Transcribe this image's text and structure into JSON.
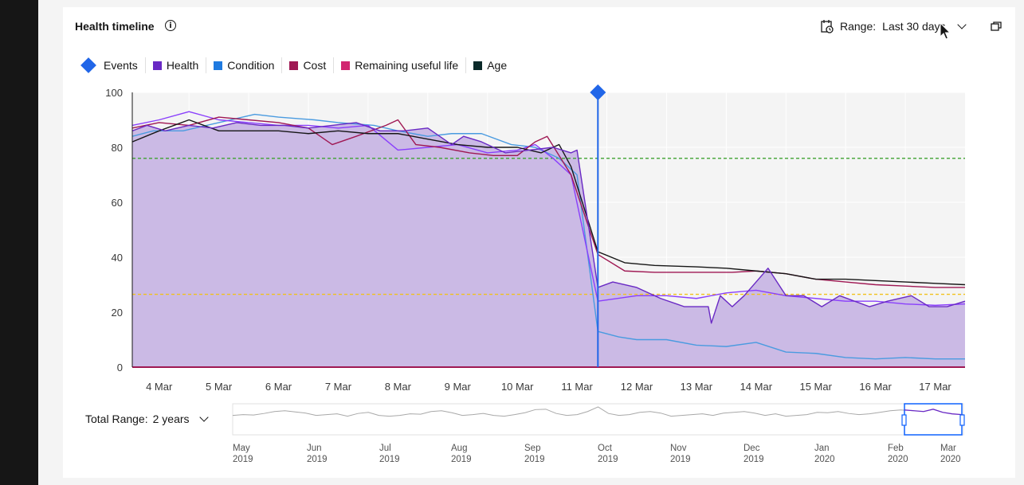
{
  "header": {
    "title": "Health timeline",
    "info_icon": "info-icon",
    "range_label": "Range:",
    "range_value": "Last 30 days",
    "calendar_icon": "calendar-icon",
    "popout_icon": "popout-icon"
  },
  "legend": [
    {
      "name": "Events",
      "shape": "diamond",
      "color": "#2166e8"
    },
    {
      "name": "Health",
      "shape": "square",
      "color": "#6929c4"
    },
    {
      "name": "Condition",
      "shape": "square",
      "color": "#1f7ae0"
    },
    {
      "name": "Cost",
      "shape": "square",
      "color": "#9f1853"
    },
    {
      "name": "Remaining useful life",
      "shape": "square",
      "color": "#d12771"
    },
    {
      "name": "Age",
      "shape": "square",
      "color": "#0b2a2a"
    }
  ],
  "footer": {
    "total_range_label": "Total Range:",
    "total_range_value": "2 years"
  },
  "chart_data": {
    "type": "area",
    "xlabel": "",
    "ylabel": "",
    "ylim": [
      0,
      100
    ],
    "xlim": [
      3.55,
      17.5
    ],
    "yticks": [
      0,
      20,
      40,
      60,
      80,
      100
    ],
    "xticks": [
      {
        "v": 4,
        "label": "4 Mar"
      },
      {
        "v": 5,
        "label": "5 Mar"
      },
      {
        "v": 6,
        "label": "6 Mar"
      },
      {
        "v": 7,
        "label": "7 Mar"
      },
      {
        "v": 8,
        "label": "8 Mar"
      },
      {
        "v": 9,
        "label": "9 Mar"
      },
      {
        "v": 10,
        "label": "10 Mar"
      },
      {
        "v": 11,
        "label": "11 Mar"
      },
      {
        "v": 12,
        "label": "12 Mar"
      },
      {
        "v": 13,
        "label": "13 Mar"
      },
      {
        "v": 14,
        "label": "14 Mar"
      },
      {
        "v": 15,
        "label": "15 Mar"
      },
      {
        "v": 16,
        "label": "16 Mar"
      },
      {
        "v": 17,
        "label": "17 Mar"
      }
    ],
    "grid": true,
    "thresholds": [
      {
        "y": 76,
        "color": "#3ea22f"
      },
      {
        "y": 26.5,
        "color": "#f1c21b"
      }
    ],
    "event": {
      "x": 11.35,
      "y": 100
    },
    "series": [
      {
        "name": "Health",
        "color": "#6929c4",
        "fill": "#c8b6e4",
        "points": [
          [
            3.55,
            86
          ],
          [
            3.8,
            88
          ],
          [
            4.1,
            86
          ],
          [
            4.5,
            88
          ],
          [
            4.9,
            87
          ],
          [
            5.3,
            89
          ],
          [
            5.7,
            88
          ],
          [
            6.1,
            88
          ],
          [
            6.5,
            87
          ],
          [
            6.9,
            88
          ],
          [
            7.3,
            89
          ],
          [
            7.7,
            86
          ],
          [
            8.1,
            86
          ],
          [
            8.5,
            87
          ],
          [
            8.9,
            81
          ],
          [
            9.1,
            84
          ],
          [
            9.4,
            82
          ],
          [
            9.8,
            78
          ],
          [
            10.2,
            79
          ],
          [
            10.6,
            80
          ],
          [
            10.9,
            78
          ],
          [
            11.0,
            79
          ],
          [
            11.35,
            29
          ],
          [
            11.6,
            31
          ],
          [
            12.0,
            29
          ],
          [
            12.4,
            25
          ],
          [
            12.8,
            22
          ],
          [
            13.2,
            22
          ],
          [
            13.25,
            16
          ],
          [
            13.4,
            26
          ],
          [
            13.6,
            22
          ],
          [
            13.8,
            26
          ],
          [
            14.2,
            36
          ],
          [
            14.5,
            26
          ],
          [
            14.8,
            26
          ],
          [
            15.1,
            22
          ],
          [
            15.4,
            26
          ],
          [
            15.9,
            22
          ],
          [
            16.2,
            24
          ],
          [
            16.6,
            26
          ],
          [
            16.9,
            22
          ],
          [
            17.2,
            22
          ],
          [
            17.5,
            24
          ]
        ]
      },
      {
        "name": "Condition",
        "color": "#4a9be0",
        "points": [
          [
            3.55,
            84
          ],
          [
            3.9,
            86
          ],
          [
            4.4,
            86
          ],
          [
            5.0,
            89
          ],
          [
            5.6,
            92
          ],
          [
            6.0,
            91
          ],
          [
            6.6,
            90
          ],
          [
            7.0,
            89
          ],
          [
            7.6,
            88
          ],
          [
            8.0,
            86
          ],
          [
            8.5,
            84
          ],
          [
            8.9,
            85
          ],
          [
            9.4,
            85
          ],
          [
            9.9,
            81
          ],
          [
            10.3,
            80
          ],
          [
            10.7,
            76
          ],
          [
            11.0,
            70
          ],
          [
            11.35,
            13
          ],
          [
            11.7,
            11
          ],
          [
            12.0,
            10
          ],
          [
            12.5,
            10
          ],
          [
            13.0,
            8
          ],
          [
            13.5,
            7.5
          ],
          [
            14.0,
            9
          ],
          [
            14.5,
            5.5
          ],
          [
            15.0,
            5
          ],
          [
            15.5,
            3.5
          ],
          [
            16.0,
            3
          ],
          [
            16.5,
            3.5
          ],
          [
            17.0,
            3
          ],
          [
            17.5,
            3
          ]
        ]
      },
      {
        "name": "Cost",
        "color": "#8a3ffc",
        "points": [
          [
            3.55,
            88
          ],
          [
            4.0,
            90
          ],
          [
            4.5,
            93
          ],
          [
            5.0,
            90
          ],
          [
            5.5,
            89
          ],
          [
            6.0,
            88
          ],
          [
            6.5,
            88
          ],
          [
            7.0,
            87
          ],
          [
            7.5,
            88
          ],
          [
            8.0,
            79
          ],
          [
            8.5,
            80
          ],
          [
            9.0,
            81
          ],
          [
            9.5,
            78
          ],
          [
            10.0,
            79
          ],
          [
            10.3,
            81
          ],
          [
            10.6,
            76
          ],
          [
            10.9,
            70
          ],
          [
            11.35,
            24
          ],
          [
            12.0,
            26
          ],
          [
            12.5,
            26
          ],
          [
            13.0,
            25
          ],
          [
            13.5,
            27
          ],
          [
            14.0,
            28
          ],
          [
            14.5,
            26
          ],
          [
            15.0,
            25
          ],
          [
            15.5,
            24
          ],
          [
            16.0,
            24
          ],
          [
            16.5,
            23
          ],
          [
            17.0,
            22.5
          ],
          [
            17.5,
            23
          ]
        ]
      },
      {
        "name": "Remaining useful life",
        "color": "#9f1853",
        "points": [
          [
            3.55,
            87
          ],
          [
            4.0,
            89
          ],
          [
            4.5,
            88
          ],
          [
            5.0,
            91
          ],
          [
            5.5,
            90
          ],
          [
            6.0,
            89
          ],
          [
            6.5,
            87
          ],
          [
            6.9,
            81
          ],
          [
            7.3,
            84
          ],
          [
            7.8,
            88
          ],
          [
            8.0,
            90
          ],
          [
            8.3,
            81
          ],
          [
            8.7,
            80
          ],
          [
            9.2,
            78
          ],
          [
            9.6,
            77
          ],
          [
            10.0,
            77
          ],
          [
            10.3,
            82
          ],
          [
            10.5,
            84
          ],
          [
            10.9,
            70
          ],
          [
            11.35,
            41
          ],
          [
            11.8,
            35
          ],
          [
            12.3,
            34.5
          ],
          [
            13.0,
            34.5
          ],
          [
            13.6,
            34.5
          ],
          [
            14.0,
            35
          ],
          [
            14.5,
            34
          ],
          [
            15.0,
            32
          ],
          [
            15.5,
            31
          ],
          [
            16.0,
            30
          ],
          [
            16.5,
            29.5
          ],
          [
            17.0,
            29
          ],
          [
            17.5,
            29
          ]
        ]
      },
      {
        "name": "Age",
        "color": "#161616",
        "points": [
          [
            3.55,
            82
          ],
          [
            4.0,
            86
          ],
          [
            4.5,
            90
          ],
          [
            5.0,
            86
          ],
          [
            5.5,
            86
          ],
          [
            6.0,
            86
          ],
          [
            6.5,
            85
          ],
          [
            7.0,
            86
          ],
          [
            7.5,
            85
          ],
          [
            8.0,
            85
          ],
          [
            8.5,
            83
          ],
          [
            9.0,
            81
          ],
          [
            9.5,
            80
          ],
          [
            10.0,
            80
          ],
          [
            10.4,
            78
          ],
          [
            10.7,
            81
          ],
          [
            10.9,
            73
          ],
          [
            11.35,
            42
          ],
          [
            11.8,
            38
          ],
          [
            12.3,
            37
          ],
          [
            13.0,
            36.5
          ],
          [
            13.5,
            36
          ],
          [
            14.0,
            35
          ],
          [
            14.5,
            34
          ],
          [
            15.0,
            32
          ],
          [
            15.5,
            32
          ],
          [
            16.0,
            31.5
          ],
          [
            16.5,
            31
          ],
          [
            17.0,
            30.5
          ],
          [
            17.5,
            30
          ]
        ]
      }
    ]
  },
  "overview": {
    "ticks": [
      {
        "line1": "May",
        "line2": "2019"
      },
      {
        "line1": "Jun",
        "line2": "2019"
      },
      {
        "line1": "Jul",
        "line2": "2019"
      },
      {
        "line1": "Aug",
        "line2": "2019"
      },
      {
        "line1": "Sep",
        "line2": "2019"
      },
      {
        "line1": "Oct",
        "line2": "2019"
      },
      {
        "line1": "Nov",
        "line2": "2019"
      },
      {
        "line1": "Dec",
        "line2": "2019"
      },
      {
        "line1": "Jan",
        "line2": "2020"
      },
      {
        "line1": "Feb",
        "line2": "2020"
      },
      {
        "line1": "Mar",
        "line2": "2020"
      }
    ],
    "line": [
      50,
      52,
      51,
      55,
      60,
      62,
      59,
      56,
      50,
      52,
      54,
      48,
      55,
      58,
      50,
      48,
      50,
      54,
      53,
      60,
      62,
      57,
      50,
      52,
      55,
      50,
      48,
      52,
      57,
      65,
      66,
      55,
      50,
      52,
      60,
      72,
      55,
      50,
      52,
      58,
      60,
      56,
      48,
      50,
      52,
      54,
      50,
      56,
      58,
      60,
      56,
      50,
      54,
      48,
      50,
      52,
      58,
      57,
      60,
      55,
      52,
      54,
      58,
      62,
      64,
      62,
      60,
      66,
      58,
      54,
      52
    ]
  }
}
